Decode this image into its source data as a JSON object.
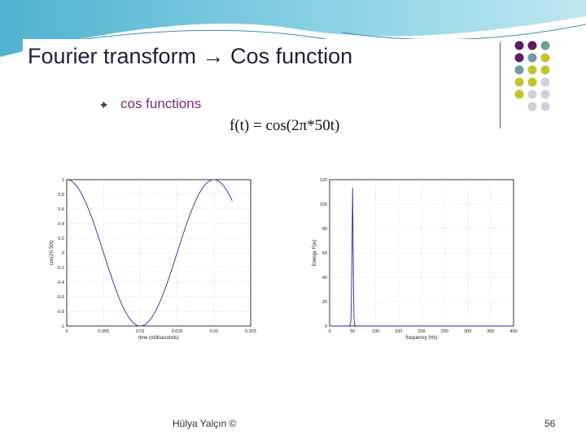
{
  "slide": {
    "title": "Fourier transform → Cos function",
    "bullet": "cos functions",
    "formula": "f(t) = cos(2π*50t)",
    "footer_author": "Hülya Yalçın ©",
    "page_number": "56"
  },
  "colors": {
    "title": "#1f1f3f",
    "bullet_text": "#7a2a7a",
    "plot_line": "#2a2aa8",
    "dot_purple": "#5b1f5f",
    "dot_teal": "#6f9c9c",
    "dot_olive": "#c5c52a",
    "dot_gray": "#cfcfe0"
  },
  "chart_data": [
    {
      "type": "line",
      "xlabel": "time (milliseconds)",
      "ylabel": "cos(2π 50t)",
      "xlim": [
        0,
        0.025
      ],
      "ylim": [
        -1,
        1
      ],
      "x_ticks": [
        "0",
        "0.005",
        "0.01",
        "0.015",
        "0.02",
        "0.025"
      ],
      "y_ticks": [
        "1",
        "0.8",
        "0.6",
        "0.4",
        "0.2",
        "0",
        "-0.2",
        "-0.4",
        "-0.6",
        "-0.8",
        "-1"
      ],
      "grid": true,
      "series": [
        {
          "function": "cos(2*pi*50*t)",
          "x_start": 0,
          "x_end": 0.0225
        }
      ]
    },
    {
      "type": "line",
      "xlabel": "frequency (Hz)",
      "ylabel": "Energy F(w)",
      "xlim": [
        0,
        400
      ],
      "ylim": [
        0,
        120
      ],
      "x_ticks": [
        "0",
        "50",
        "100",
        "150",
        "200",
        "250",
        "300",
        "350",
        "400"
      ],
      "y_ticks": [
        "120",
        "100",
        "80",
        "60",
        "40",
        "20",
        "0"
      ],
      "grid": true,
      "series": [
        {
          "peak_frequency": 50,
          "peak_value": 113,
          "points": [
            [
              40,
              0
            ],
            [
              44,
              0.5
            ],
            [
              46,
              3
            ],
            [
              47,
              15
            ],
            [
              48,
              45
            ],
            [
              49,
              80
            ],
            [
              50,
              113
            ],
            [
              51,
              72
            ],
            [
              52,
              30
            ],
            [
              53,
              8
            ],
            [
              54,
              1
            ],
            [
              58,
              0
            ]
          ]
        }
      ]
    }
  ]
}
